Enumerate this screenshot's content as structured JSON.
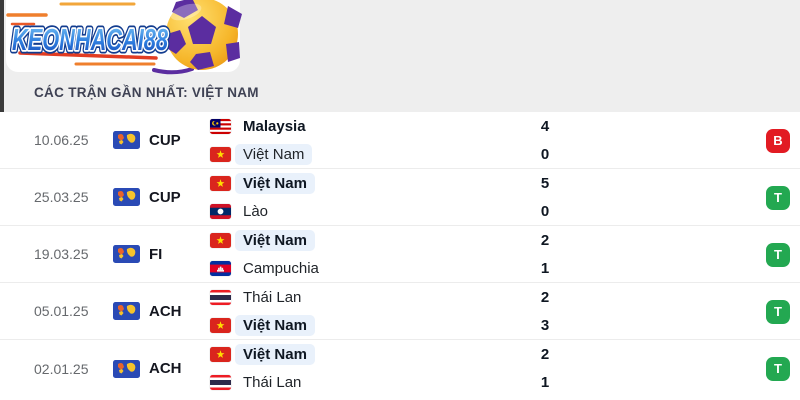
{
  "logo": {
    "text": "KEONHACAI88"
  },
  "header": {
    "title": "CÁC TRẬN GẦN NHẤT: VIỆT NAM"
  },
  "colors": {
    "win": "#23a851",
    "loss": "#e21b23",
    "highlight": "#e9f1fb",
    "header_bg": "#eeeeee",
    "logo_blue": "#2f7fe0"
  },
  "matches": [
    {
      "date": "10.06.25",
      "competition": "CUP",
      "home": {
        "name": "Malaysia",
        "flag": "malaysia",
        "score": "4",
        "bold": true,
        "highlight": false
      },
      "away": {
        "name": "Việt Nam",
        "flag": "vietnam",
        "score": "0",
        "bold": false,
        "highlight": true
      },
      "result": {
        "label": "B",
        "type": "loss"
      }
    },
    {
      "date": "25.03.25",
      "competition": "CUP",
      "home": {
        "name": "Việt Nam",
        "flag": "vietnam",
        "score": "5",
        "bold": true,
        "highlight": true
      },
      "away": {
        "name": "Lào",
        "flag": "laos",
        "score": "0",
        "bold": false,
        "highlight": false
      },
      "result": {
        "label": "T",
        "type": "win"
      }
    },
    {
      "date": "19.03.25",
      "competition": "FI",
      "home": {
        "name": "Việt Nam",
        "flag": "vietnam",
        "score": "2",
        "bold": true,
        "highlight": true
      },
      "away": {
        "name": "Campuchia",
        "flag": "cambodia",
        "score": "1",
        "bold": false,
        "highlight": false
      },
      "result": {
        "label": "T",
        "type": "win"
      }
    },
    {
      "date": "05.01.25",
      "competition": "ACH",
      "home": {
        "name": "Thái Lan",
        "flag": "thailand",
        "score": "2",
        "bold": false,
        "highlight": false
      },
      "away": {
        "name": "Việt Nam",
        "flag": "vietnam",
        "score": "3",
        "bold": true,
        "highlight": true
      },
      "result": {
        "label": "T",
        "type": "win"
      }
    },
    {
      "date": "02.01.25",
      "competition": "ACH",
      "home": {
        "name": "Việt Nam",
        "flag": "vietnam",
        "score": "2",
        "bold": true,
        "highlight": true
      },
      "away": {
        "name": "Thái Lan",
        "flag": "thailand",
        "score": "1",
        "bold": false,
        "highlight": false
      },
      "result": {
        "label": "T",
        "type": "win"
      }
    }
  ]
}
